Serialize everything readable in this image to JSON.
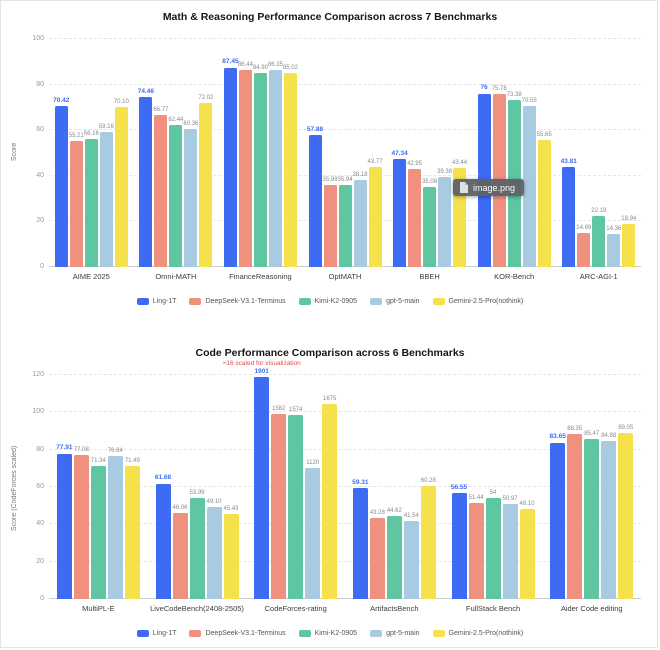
{
  "tooltip": {
    "text": "image.png"
  },
  "chart_data": [
    {
      "type": "bar",
      "title": "Math & Reasoning Performance Comparison across 7 Benchmarks",
      "xlabel": "",
      "ylabel": "Score",
      "ylim": [
        0,
        100
      ],
      "yticks": [
        0,
        20,
        40,
        60,
        80,
        100
      ],
      "grid": true,
      "legend_position": "bottom",
      "categories": [
        "AIME 2025",
        "Omni-MATH",
        "FinanceReasoning",
        "OptMATH",
        "BBEH",
        "KOR-Bench",
        "ARC-AGI-1"
      ],
      "series": [
        {
          "name": "Ling-1T",
          "color": "#3D6BF3",
          "values": [
            "70.42",
            "74.46",
            "87.45",
            "57.88",
            "47.34",
            "76",
            "43.81"
          ]
        },
        {
          "name": "DeepSeek-V3.1-Terminus",
          "color": "#F0907E",
          "values": [
            "55.21",
            "66.77",
            "86.44",
            "35.99",
            "42.95",
            "75.78",
            "14.89"
          ]
        },
        {
          "name": "Kimi-K2-0905",
          "color": "#5EC7A2",
          "values": [
            "56.16",
            "62.44",
            "84.90",
            "35.94",
            "35.08",
            "73.38",
            "22.19"
          ]
        },
        {
          "name": "gpt-5-main",
          "color": "#A9CBE2",
          "values": [
            "59.16",
            "60.36",
            "86.35",
            "38.18",
            "39.38",
            "70.55",
            "14.36"
          ]
        },
        {
          "name": "Gemini-2.5-Pro(nothink)",
          "color": "#F5E14B",
          "values": [
            "70.10",
            "72.02",
            "85.02",
            "43.77",
            "43.44",
            "55.65",
            "18.94"
          ]
        }
      ]
    },
    {
      "type": "bar",
      "title": "Code Performance Comparison across 6 Benchmarks",
      "xlabel": "",
      "ylabel": "Score (CodeForces scaled)",
      "ylim": [
        0,
        120
      ],
      "yticks": [
        0,
        20,
        40,
        60,
        80,
        100,
        120
      ],
      "grid": true,
      "legend_position": "bottom",
      "scale_divisor": 16,
      "scale_note": "CodeForces-rating values divided by 16 for plotting",
      "annotation": {
        "text": "×16 scaled for visualization",
        "color": "#E04F3F",
        "category": "CodeForces-rating"
      },
      "categories": [
        "MultiPL-E",
        "LiveCodeBench(2408-2505)",
        "CodeForces-rating",
        "ArtifactsBench",
        "FullStack Bench",
        "Aider Code editing"
      ],
      "series": [
        {
          "name": "Ling-1T",
          "color": "#3D6BF3",
          "values": [
            "77.91",
            "61.68",
            "1901",
            "59.31",
            "56.55",
            "83.65"
          ]
        },
        {
          "name": "DeepSeek-V3.1-Terminus",
          "color": "#F0907E",
          "values": [
            "77.08",
            "46.06",
            "1582",
            "43.28",
            "51.44",
            "88.35"
          ]
        },
        {
          "name": "Kimi-K2-0905",
          "color": "#5EC7A2",
          "values": [
            "71.34",
            "53.99",
            "1574",
            "44.62",
            "54",
            "85.47"
          ]
        },
        {
          "name": "gpt-5-main",
          "color": "#A9CBE2",
          "values": [
            "76.84",
            "49.10",
            "1120",
            "41.54",
            "50.97",
            "84.88"
          ]
        },
        {
          "name": "Gemini-2.5-Pro(nothink)",
          "color": "#F5E14B",
          "values": [
            "71.49",
            "45.43",
            "1675",
            "60.28",
            "48.10",
            "89.05"
          ]
        }
      ]
    }
  ]
}
